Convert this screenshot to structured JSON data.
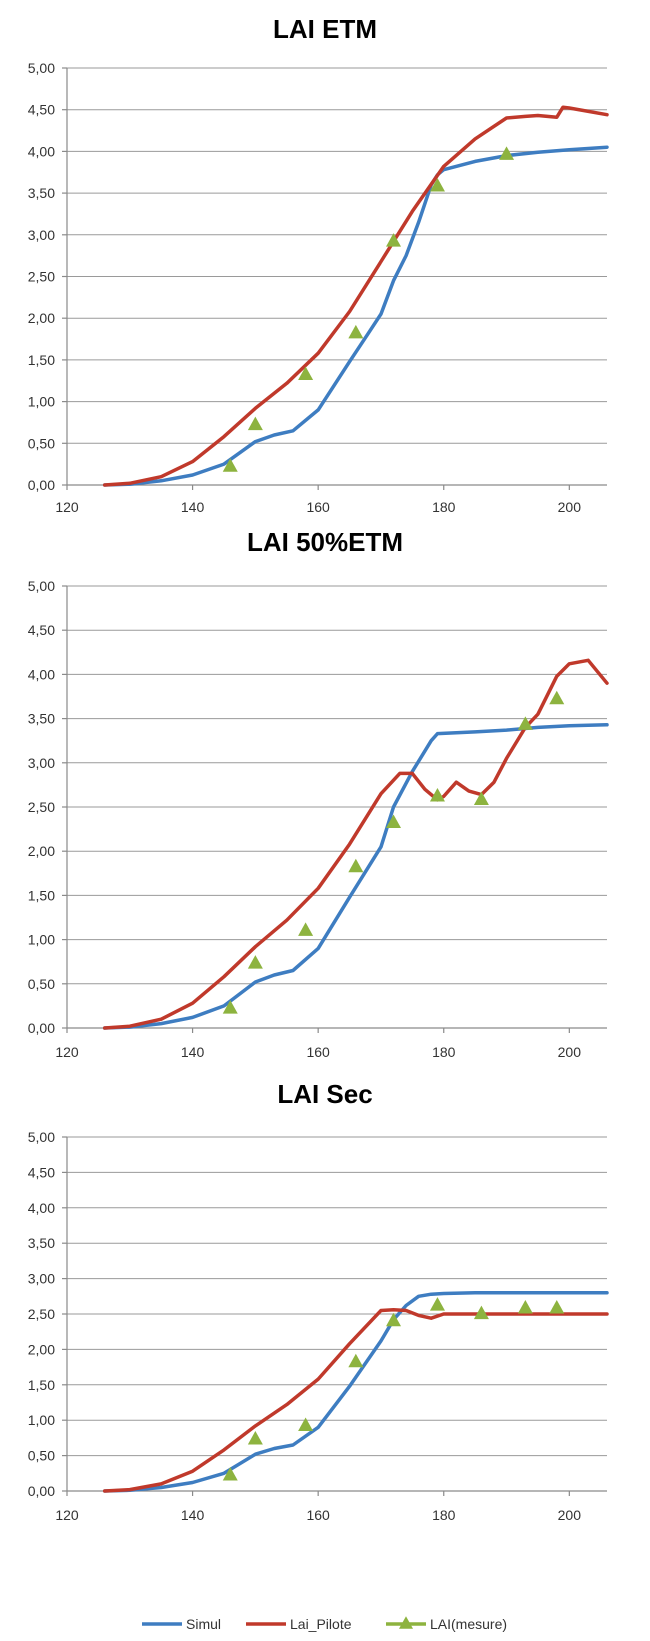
{
  "colors": {
    "Simul": "#3E7DC1",
    "Lai_Pilote": "#C0392B",
    "LAI(mesure)": "#8DB33F"
  },
  "legend": [
    {
      "name": "Simul"
    },
    {
      "name": "Lai_Pilote"
    },
    {
      "name": "LAI(mesure)"
    }
  ],
  "chart_data": [
    {
      "type": "line",
      "title": "LAI ETM",
      "xlabel": "",
      "ylabel": "",
      "xlim": [
        120,
        206
      ],
      "ylim": [
        0,
        5
      ],
      "x_ticks": [
        "120",
        "140",
        "160",
        "180",
        "200"
      ],
      "y_ticks": [
        "0,00",
        "0,50",
        "1,00",
        "1,50",
        "2,00",
        "2,50",
        "3,00",
        "3,50",
        "4,00",
        "4,50",
        "5,00"
      ],
      "grid": true,
      "series": [
        {
          "name": "Simul",
          "kind": "line",
          "x": [
            126,
            130,
            135,
            140,
            145,
            150,
            153,
            156,
            160,
            165,
            168,
            170,
            172,
            174,
            176,
            178,
            179,
            180,
            185,
            190,
            195,
            200,
            206
          ],
          "y": [
            0,
            0.01,
            0.05,
            0.12,
            0.25,
            0.52,
            0.6,
            0.65,
            0.9,
            1.48,
            1.82,
            2.05,
            2.45,
            2.75,
            3.15,
            3.6,
            3.72,
            3.78,
            3.88,
            3.95,
            3.99,
            4.02,
            4.05
          ]
        },
        {
          "name": "Lai_Pilote",
          "kind": "line",
          "x": [
            126,
            130,
            135,
            140,
            145,
            150,
            155,
            160,
            165,
            170,
            175,
            180,
            185,
            190,
            193,
            195,
            198,
            199,
            200,
            206
          ],
          "y": [
            0,
            0.02,
            0.1,
            0.28,
            0.58,
            0.92,
            1.22,
            1.58,
            2.08,
            2.68,
            3.28,
            3.82,
            4.15,
            4.4,
            4.42,
            4.43,
            4.41,
            4.53,
            4.52,
            4.44
          ]
        },
        {
          "name": "LAI(mesure)",
          "kind": "marker",
          "x": [
            146,
            150,
            158,
            166,
            172,
            179,
            190
          ],
          "y": [
            0.22,
            0.72,
            1.32,
            1.82,
            2.92,
            3.58,
            3.96
          ]
        }
      ]
    },
    {
      "type": "line",
      "title": "LAI 50%ETM",
      "xlabel": "",
      "ylabel": "",
      "xlim": [
        120,
        206
      ],
      "ylim": [
        0,
        5
      ],
      "x_ticks": [
        "120",
        "140",
        "160",
        "180",
        "200"
      ],
      "y_ticks": [
        "0,00",
        "0,50",
        "1,00",
        "1,50",
        "2,00",
        "2,50",
        "3,00",
        "3,50",
        "4,00",
        "4,50",
        "5,00"
      ],
      "grid": true,
      "series": [
        {
          "name": "Simul",
          "kind": "line",
          "x": [
            126,
            130,
            135,
            140,
            145,
            150,
            153,
            156,
            160,
            165,
            168,
            170,
            172,
            175,
            178,
            179,
            185,
            190,
            195,
            200,
            206
          ],
          "y": [
            0,
            0.01,
            0.05,
            0.12,
            0.25,
            0.52,
            0.6,
            0.65,
            0.9,
            1.48,
            1.82,
            2.05,
            2.5,
            2.9,
            3.25,
            3.33,
            3.35,
            3.37,
            3.4,
            3.42,
            3.43
          ]
        },
        {
          "name": "Lai_Pilote",
          "kind": "line",
          "x": [
            126,
            130,
            135,
            140,
            145,
            150,
            155,
            160,
            165,
            170,
            173,
            175,
            177,
            179,
            180,
            182,
            184,
            186,
            188,
            190,
            193,
            195,
            198,
            200,
            203,
            206
          ],
          "y": [
            0,
            0.02,
            0.1,
            0.28,
            0.58,
            0.92,
            1.22,
            1.58,
            2.08,
            2.65,
            2.88,
            2.88,
            2.7,
            2.58,
            2.62,
            2.78,
            2.68,
            2.64,
            2.78,
            3.05,
            3.4,
            3.55,
            3.98,
            4.12,
            4.16,
            3.9
          ]
        },
        {
          "name": "LAI(mesure)",
          "kind": "marker",
          "x": [
            146,
            150,
            158,
            166,
            172,
            179,
            186,
            193,
            198
          ],
          "y": [
            0.22,
            0.73,
            1.1,
            1.82,
            2.32,
            2.62,
            2.58,
            3.43,
            3.72
          ]
        }
      ]
    },
    {
      "type": "line",
      "title": "LAI Sec",
      "xlabel": "",
      "ylabel": "",
      "xlim": [
        120,
        206
      ],
      "ylim": [
        0,
        5
      ],
      "x_ticks": [
        "120",
        "140",
        "160",
        "180",
        "200"
      ],
      "y_ticks": [
        "0,00",
        "0,50",
        "1,00",
        "1,50",
        "2,00",
        "2,50",
        "3,00",
        "3,50",
        "4,00",
        "4,50",
        "5,00"
      ],
      "grid": true,
      "series": [
        {
          "name": "Simul",
          "kind": "line",
          "x": [
            126,
            130,
            135,
            140,
            145,
            150,
            153,
            156,
            160,
            165,
            170,
            172,
            174,
            176,
            178,
            180,
            185,
            190,
            200,
            206
          ],
          "y": [
            0,
            0.01,
            0.05,
            0.12,
            0.25,
            0.52,
            0.6,
            0.65,
            0.9,
            1.48,
            2.12,
            2.42,
            2.62,
            2.75,
            2.78,
            2.79,
            2.8,
            2.8,
            2.8,
            2.8
          ]
        },
        {
          "name": "Lai_Pilote",
          "kind": "line",
          "x": [
            126,
            130,
            135,
            140,
            145,
            150,
            155,
            160,
            165,
            170,
            172,
            174,
            176,
            178,
            180,
            185,
            190,
            200,
            206
          ],
          "y": [
            0,
            0.02,
            0.1,
            0.28,
            0.58,
            0.92,
            1.22,
            1.58,
            2.08,
            2.55,
            2.56,
            2.55,
            2.48,
            2.44,
            2.5,
            2.5,
            2.5,
            2.5,
            2.5
          ]
        },
        {
          "name": "LAI(mesure)",
          "kind": "marker",
          "x": [
            146,
            150,
            158,
            166,
            172,
            179,
            186,
            193,
            198
          ],
          "y": [
            0.22,
            0.73,
            0.92,
            1.82,
            2.4,
            2.62,
            2.5,
            2.58,
            2.58
          ]
        }
      ]
    }
  ]
}
